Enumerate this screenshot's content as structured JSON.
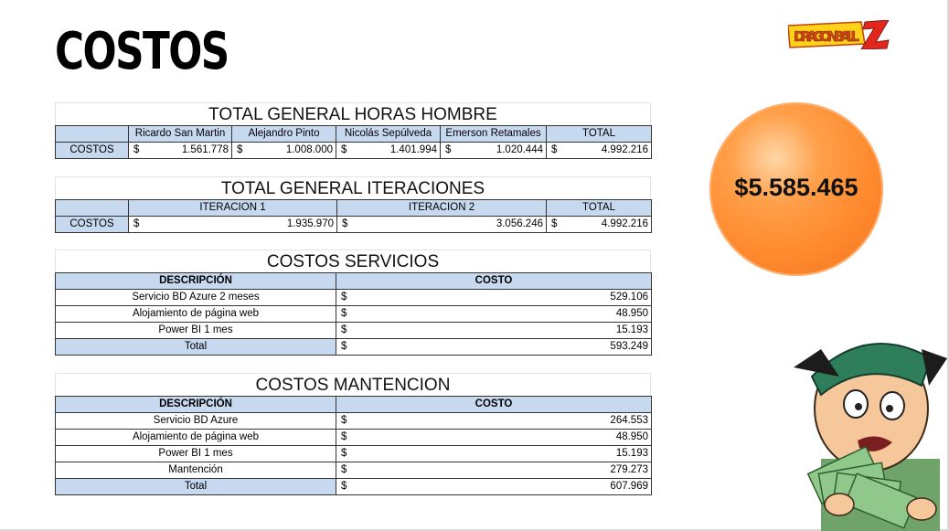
{
  "page": {
    "title": "COSTOS",
    "logo_text": "DRAGON BALL Z",
    "grand_total": "$5.585.465"
  },
  "horas_hombre": {
    "title": "TOTAL GENERAL HORAS HOMBRE",
    "columns": [
      "Ricardo San Martin",
      "Alejandro Pinto",
      "Nicolás Sepúlveda",
      "Emerson Retamales",
      "TOTAL"
    ],
    "row_label": "COSTOS",
    "currency": "$",
    "values": [
      "1.561.778",
      "1.008.000",
      "1.401.994",
      "1.020.444",
      "4.992.216"
    ]
  },
  "iteraciones": {
    "title": "TOTAL GENERAL ITERACIONES",
    "columns": [
      "ITERACION 1",
      "ITERACION 2",
      "TOTAL"
    ],
    "row_label": "COSTOS",
    "currency": "$",
    "values": [
      "1.935.970",
      "3.056.246",
      "4.992.216"
    ]
  },
  "servicios": {
    "title": "COSTOS SERVICIOS",
    "col_desc": "DESCRIPCIÓN",
    "col_cost": "COSTO",
    "currency": "$",
    "rows": [
      {
        "desc": "Servicio BD Azure 2 meses",
        "cost": "529.106"
      },
      {
        "desc": "Alojamiento de página web",
        "cost": "48.950"
      },
      {
        "desc": "Power BI  1 mes",
        "cost": "15.193"
      }
    ],
    "total_label": "Total",
    "total": "593.249"
  },
  "mantencion": {
    "title": "COSTOS MANTENCION",
    "col_desc": "DESCRIPCIÓN",
    "col_cost": "COSTO",
    "currency": "$",
    "rows": [
      {
        "desc": "Servicio BD Azure",
        "cost": "264.553"
      },
      {
        "desc": "Alojamiento de página web",
        "cost": "48.950"
      },
      {
        "desc": "Power BI  1 mes",
        "cost": "15.193"
      },
      {
        "desc": "Mantención",
        "cost": "279.273"
      }
    ],
    "total_label": "Total",
    "total": "607.969"
  },
  "colors": {
    "header_fill": "#c7d9ef",
    "ball_orange": "#ff8a2e",
    "logo_yellow": "#ffd21a",
    "logo_red": "#e3261c"
  }
}
